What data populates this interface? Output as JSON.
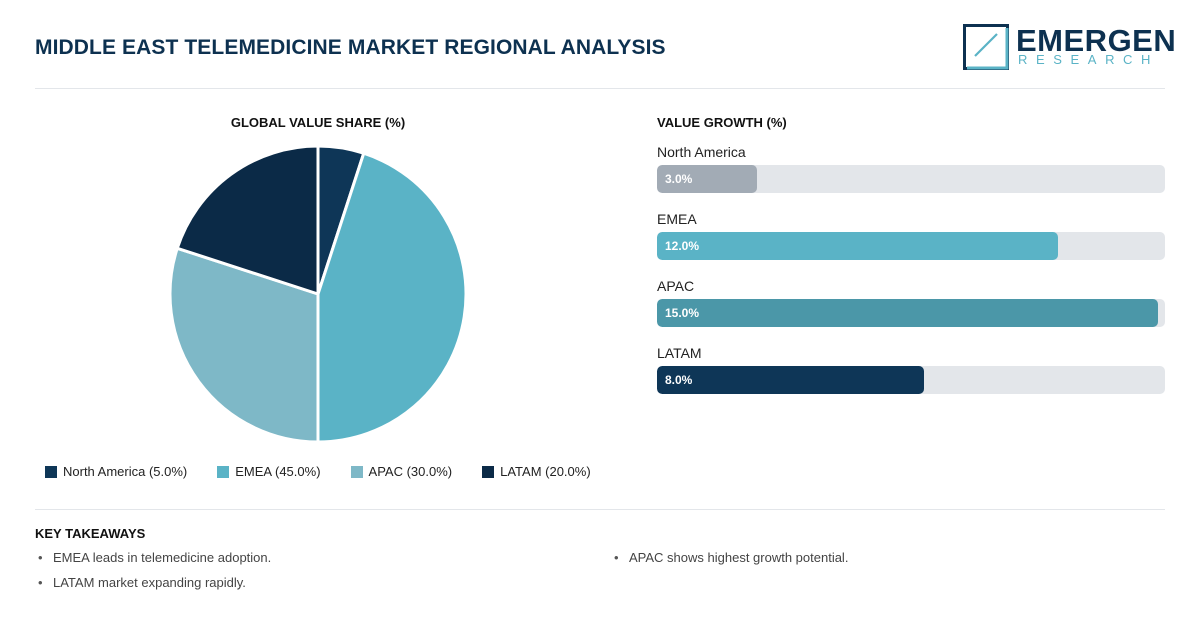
{
  "header": {
    "title": "MIDDLE EAST TELEMEDICINE MARKET REGIONAL ANALYSIS",
    "logo_word": "EMERGEN",
    "logo_sub": "RESEARCH"
  },
  "chart_data": [
    {
      "type": "pie",
      "title": "GLOBAL VALUE SHARE (%)",
      "categories": [
        "North America",
        "EMEA",
        "APAC",
        "LATAM"
      ],
      "values": [
        5.0,
        45.0,
        30.0,
        20.0
      ],
      "colors": [
        "#0e3657",
        "#5ab3c6",
        "#7eb8c7",
        "#0b2a47"
      ],
      "legend": [
        "North America (5.0%)",
        "EMEA (45.0%)",
        "APAC (30.0%)",
        "LATAM (20.0%)"
      ],
      "legend_placement": "bottom"
    },
    {
      "type": "bar",
      "orientation": "horizontal",
      "title": "VALUE GROWTH (%)",
      "categories": [
        "North America",
        "EMEA",
        "APAC",
        "LATAM"
      ],
      "values": [
        3.0,
        12.0,
        15.0,
        8.0
      ],
      "labels": [
        "3.0%",
        "12.0%",
        "15.0%",
        "8.0%"
      ],
      "colors": [
        "#a2abb5",
        "#5ab3c6",
        "#4b97a8",
        "#0e3657"
      ],
      "xlim": [
        0,
        15.2
      ]
    }
  ],
  "takeaways": {
    "title": "KEY TAKEAWAYS",
    "left": [
      "EMEA leads in telemedicine adoption.",
      "LATAM market expanding rapidly."
    ],
    "right": [
      "APAC shows highest growth potential."
    ]
  }
}
